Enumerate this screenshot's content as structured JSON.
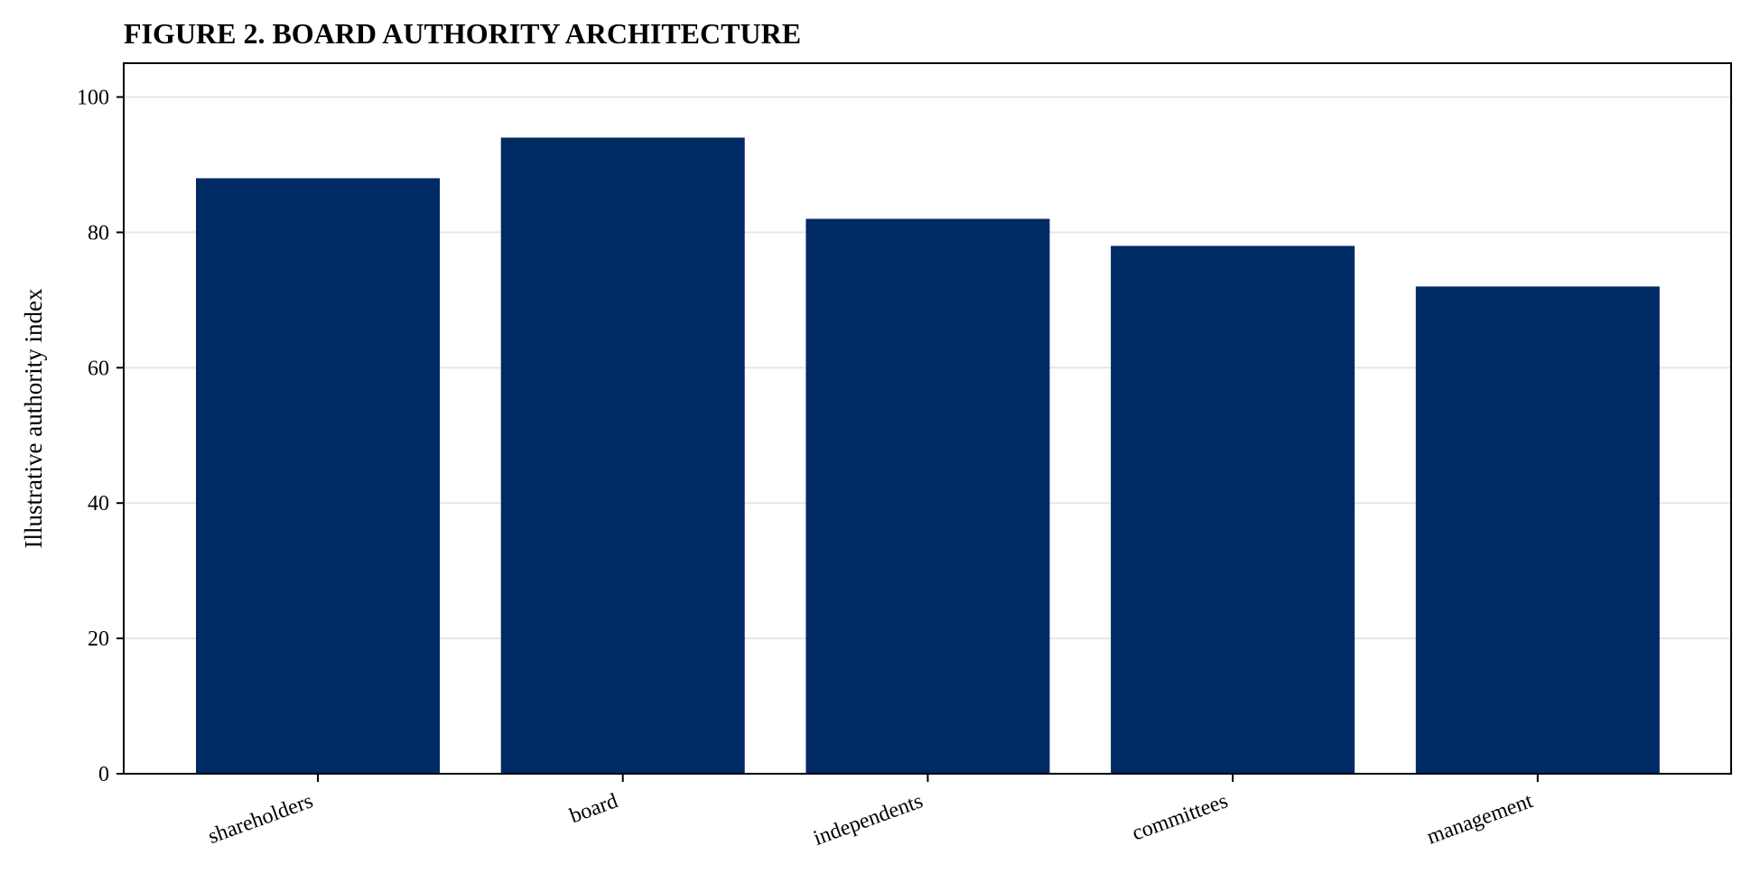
{
  "chart_data": {
    "type": "bar",
    "title": "FIGURE 2. BOARD AUTHORITY ARCHITECTURE",
    "xlabel": "",
    "ylabel": "Illustrative authority index",
    "categories": [
      "shareholders",
      "board",
      "independents",
      "committees",
      "management"
    ],
    "values": [
      88,
      94,
      82,
      78,
      72
    ],
    "ylim": [
      0,
      105
    ],
    "yticks": [
      0,
      20,
      40,
      60,
      80,
      100
    ],
    "grid": "horizontal",
    "legend": "none",
    "colors": {
      "bar": "#002a64",
      "grid": "#e6e6e6",
      "axis": "#000000"
    }
  }
}
